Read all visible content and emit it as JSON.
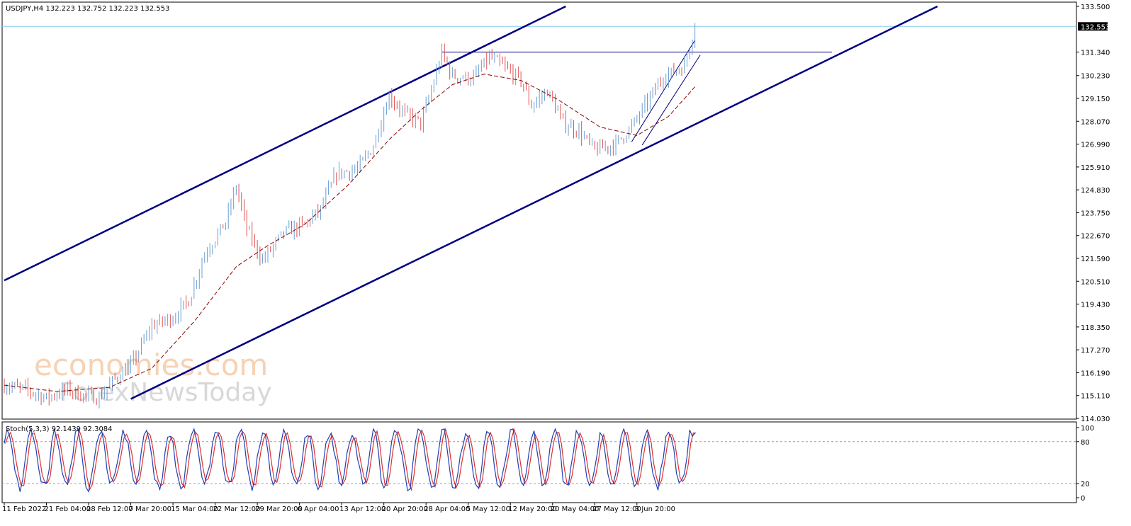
{
  "header": {
    "symbol_line": "USDJPY,H4  132.223 132.752 132.223 132.553"
  },
  "indicator": {
    "label": "Stoch(5,3,3) 92.1439 92.3084"
  },
  "watermark": {
    "line1": "economies.com",
    "line2": "ForexNewsToday"
  },
  "colors": {
    "bull": "#6a9fd4",
    "bear": "#e05050",
    "channel": "#000080",
    "ma": "#8b0000",
    "bid_line": "#87ceeb",
    "stoch_main": "#1f3fb5",
    "stoch_signal": "#e03030"
  },
  "chart_data": {
    "type": "candlestick",
    "symbol": "USDJPY",
    "timeframe": "H4",
    "ohlc_last": {
      "open": 132.223,
      "high": 132.752,
      "low": 132.223,
      "close": 132.553
    },
    "current_price_label": "132.553",
    "ylim": [
      114.03,
      133.5
    ],
    "price_ticks": [
      "133.500",
      "131.340",
      "130.230",
      "129.150",
      "128.070",
      "126.990",
      "125.910",
      "124.830",
      "123.750",
      "122.670",
      "121.590",
      "120.510",
      "119.430",
      "118.350",
      "117.270",
      "116.190",
      "115.110",
      "114.030"
    ],
    "price_tick_values": [
      133.5,
      131.34,
      130.23,
      129.15,
      128.07,
      126.99,
      125.91,
      124.83,
      123.75,
      122.67,
      121.59,
      120.51,
      119.43,
      118.35,
      117.27,
      116.19,
      115.11,
      114.03
    ],
    "x_labels": [
      "11 Feb 2022",
      "21 Feb 04:00",
      "28 Feb 12:00",
      "7 Mar 20:00",
      "15 Mar 04:00",
      "22 Mar 12:00",
      "29 Mar 20:00",
      "6 Apr 04:00",
      "13 Apr 12:00",
      "20 Apr 20:00",
      "28 Apr 04:00",
      "5 May 12:00",
      "12 May 20:00",
      "20 May 04:00",
      "27 May 12:00",
      "3 Jun 20:00"
    ],
    "x_label_index": [
      0,
      16,
      32,
      48,
      64,
      80,
      96,
      112,
      128,
      144,
      160,
      176,
      192,
      208,
      224,
      240
    ],
    "path_points": [
      [
        0,
        115.6
      ],
      [
        8,
        115.4
      ],
      [
        16,
        115.0
      ],
      [
        24,
        115.4
      ],
      [
        30,
        115.1
      ],
      [
        36,
        115.0
      ],
      [
        42,
        115.9
      ],
      [
        48,
        116.5
      ],
      [
        56,
        118.4
      ],
      [
        64,
        118.8
      ],
      [
        70,
        119.6
      ],
      [
        76,
        121.8
      ],
      [
        84,
        123.3
      ],
      [
        88,
        125.0
      ],
      [
        92,
        123.0
      ],
      [
        98,
        121.5
      ],
      [
        106,
        122.8
      ],
      [
        114,
        123.2
      ],
      [
        120,
        123.9
      ],
      [
        126,
        125.6
      ],
      [
        134,
        125.8
      ],
      [
        140,
        126.9
      ],
      [
        146,
        129.3
      ],
      [
        152,
        128.4
      ],
      [
        158,
        128.0
      ],
      [
        162,
        129.5
      ],
      [
        166,
        131.3
      ],
      [
        170,
        130.2
      ],
      [
        178,
        130.1
      ],
      [
        184,
        131.1
      ],
      [
        190,
        130.6
      ],
      [
        196,
        130.0
      ],
      [
        200,
        128.8
      ],
      [
        206,
        129.5
      ],
      [
        212,
        128.0
      ],
      [
        218,
        127.6
      ],
      [
        224,
        126.7
      ],
      [
        232,
        127.0
      ],
      [
        238,
        127.8
      ],
      [
        244,
        129.0
      ],
      [
        250,
        130.2
      ],
      [
        254,
        130.4
      ],
      [
        258,
        130.7
      ],
      [
        262,
        132.55
      ]
    ],
    "moving_average": [
      [
        0,
        115.6
      ],
      [
        20,
        115.3
      ],
      [
        40,
        115.5
      ],
      [
        56,
        116.4
      ],
      [
        72,
        118.6
      ],
      [
        88,
        121.2
      ],
      [
        100,
        122.2
      ],
      [
        114,
        123.2
      ],
      [
        130,
        125.0
      ],
      [
        146,
        127.2
      ],
      [
        158,
        128.6
      ],
      [
        170,
        129.8
      ],
      [
        182,
        130.3
      ],
      [
        196,
        130.0
      ],
      [
        210,
        129.1
      ],
      [
        226,
        127.8
      ],
      [
        240,
        127.4
      ],
      [
        252,
        128.3
      ],
      [
        262,
        129.7
      ]
    ],
    "channel": {
      "upper": [
        [
          0,
          120.55
        ],
        [
          213,
          133.5
        ]
      ],
      "lower": [
        [
          48,
          114.95
        ],
        [
          354,
          133.5
        ]
      ]
    },
    "resistance": {
      "value": 131.34,
      "from_index": 166,
      "to_index": 314
    },
    "wedge": {
      "upper": [
        [
          238,
          127.1
        ],
        [
          262,
          131.9
        ]
      ],
      "lower": [
        [
          242,
          126.95
        ],
        [
          264,
          131.2
        ]
      ]
    },
    "stochastic": {
      "name": "Stoch(5,3,3)",
      "k_last": 92.1439,
      "d_last": 92.3084,
      "levels": [
        100,
        80,
        20,
        0
      ],
      "level_labels": [
        "100",
        "80",
        "20",
        "0"
      ],
      "dashed_levels": [
        80,
        20
      ]
    }
  }
}
